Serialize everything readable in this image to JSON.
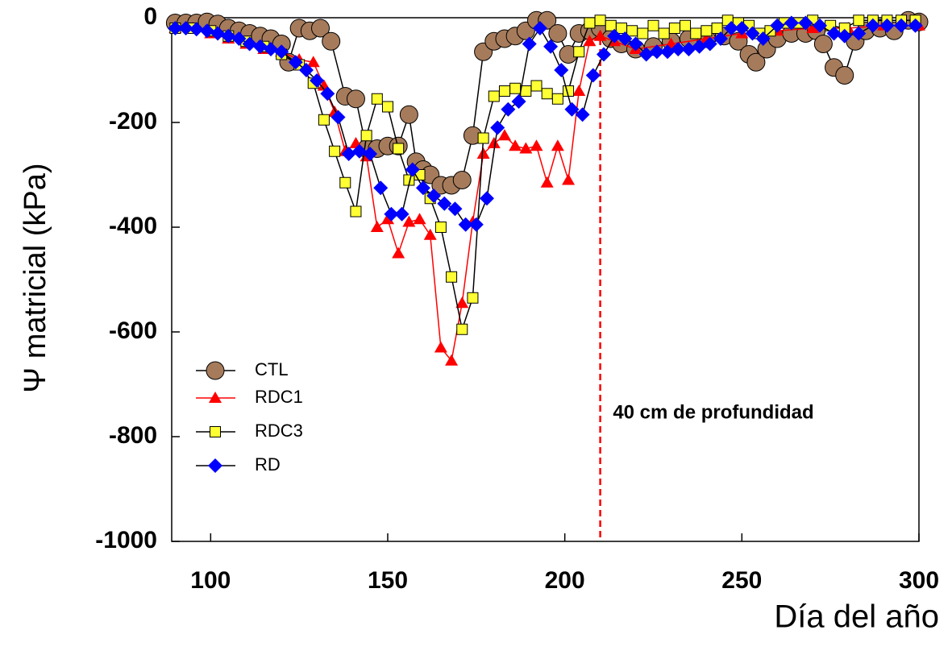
{
  "chart_data": {
    "type": "line",
    "xlabel": "Día del año",
    "ylabel": "Ψ matricial (kPa)",
    "annotation": "40 cm de profundidad",
    "vline": {
      "x": 210,
      "color": "#ff0000"
    },
    "xlim": [
      89,
      300
    ],
    "xticks": [
      100,
      150,
      200,
      250,
      300
    ],
    "ylim": [
      -1000,
      0
    ],
    "yticks": [
      -1000,
      -800,
      -600,
      -400,
      -200,
      0
    ],
    "legend": "lower left",
    "series": [
      {
        "name": "CTL",
        "marker": "circle",
        "color": "#a67b5b",
        "line_color": "#000000",
        "x": [
          90,
          93,
          96,
          99,
          102,
          105,
          108,
          111,
          114,
          117,
          120,
          122,
          125,
          128,
          131,
          134,
          138,
          141,
          144,
          147,
          150,
          153,
          156,
          158,
          160,
          162,
          165,
          168,
          171,
          174,
          177,
          180,
          183,
          186,
          189,
          192,
          195,
          198,
          201,
          204,
          207,
          210,
          213,
          216,
          220,
          225,
          230,
          235,
          240,
          245,
          249,
          252,
          254,
          257,
          260,
          264,
          268,
          271,
          273,
          276,
          279,
          282,
          285,
          289,
          293,
          297,
          300
        ],
        "values": [
          -10,
          -10,
          -10,
          -8,
          -12,
          -20,
          -25,
          -30,
          -35,
          -40,
          -50,
          -85,
          -20,
          -25,
          -20,
          -45,
          -150,
          -155,
          -250,
          -250,
          -245,
          -245,
          -185,
          -275,
          -290,
          -300,
          -320,
          -320,
          -310,
          -225,
          -65,
          -45,
          -40,
          -35,
          -25,
          -5,
          -5,
          -30,
          -70,
          -30,
          -25,
          -20,
          -40,
          -50,
          -60,
          -55,
          -45,
          -40,
          -40,
          -35,
          -45,
          -70,
          -85,
          -60,
          -40,
          -30,
          -30,
          -25,
          -50,
          -95,
          -110,
          -45,
          -25,
          -20,
          -25,
          -5,
          -8
        ]
      },
      {
        "name": "RDC1",
        "marker": "triangle",
        "color": "#ff0000",
        "line_color": "#ff0000",
        "x": [
          90,
          95,
          100,
          105,
          110,
          115,
          120,
          125,
          129,
          132,
          135,
          138,
          141,
          144,
          147,
          150,
          153,
          156,
          159,
          162,
          165,
          168,
          171,
          174,
          177,
          180,
          183,
          186,
          189,
          192,
          195,
          198,
          201,
          204,
          207,
          210,
          214,
          220,
          230,
          240,
          250,
          260,
          270,
          280,
          290,
          300
        ],
        "values": [
          -20,
          -20,
          -30,
          -40,
          -50,
          -60,
          -65,
          -80,
          -85,
          -130,
          -180,
          -255,
          -240,
          -265,
          -400,
          -385,
          -450,
          -390,
          -385,
          -415,
          -630,
          -655,
          -545,
          -390,
          -260,
          -240,
          -225,
          -245,
          -250,
          -245,
          -315,
          -245,
          -310,
          -140,
          -45,
          -35,
          -45,
          -60,
          -50,
          -40,
          -30,
          -25,
          -20,
          -20,
          -15,
          -15
        ]
      },
      {
        "name": "RDC3",
        "marker": "square",
        "color": "#ffff33",
        "line_color": "#000000",
        "x": [
          90,
          95,
          100,
          105,
          110,
          115,
          120,
          125,
          129,
          132,
          135,
          138,
          141,
          144,
          147,
          150,
          153,
          156,
          159,
          162,
          165,
          168,
          171,
          174,
          177,
          180,
          183,
          186,
          189,
          192,
          195,
          198,
          201,
          204,
          207,
          210,
          213,
          216,
          219,
          222,
          225,
          228,
          231,
          234,
          237,
          240,
          243,
          246,
          249,
          252,
          255,
          258,
          262,
          266,
          270,
          275,
          279,
          283,
          287,
          291,
          295,
          299
        ],
        "values": [
          -20,
          -20,
          -25,
          -35,
          -45,
          -55,
          -70,
          -90,
          -125,
          -195,
          -255,
          -315,
          -370,
          -225,
          -155,
          -170,
          -250,
          -310,
          -300,
          -345,
          -400,
          -495,
          -595,
          -535,
          -230,
          -150,
          -140,
          -135,
          -140,
          -130,
          -145,
          -155,
          -140,
          -65,
          -10,
          -5,
          -15,
          -20,
          -25,
          -30,
          -15,
          -30,
          -20,
          -15,
          -30,
          -25,
          -20,
          -5,
          -10,
          -15,
          -30,
          -25,
          -10,
          -10,
          -5,
          -15,
          -20,
          -5,
          -5,
          -5,
          -5,
          -5
        ]
      },
      {
        "name": "RD",
        "marker": "diamond",
        "color": "#0000ff",
        "line_color": "#000000",
        "x": [
          90,
          93,
          96,
          99,
          102,
          105,
          108,
          111,
          114,
          117,
          120,
          124,
          127,
          130,
          133,
          136,
          139,
          142,
          145,
          148,
          151,
          154,
          157,
          160,
          163,
          166,
          169,
          172,
          175,
          178,
          181,
          184,
          187,
          190,
          193,
          196,
          199,
          202,
          205,
          208,
          211,
          214,
          217,
          220,
          223,
          226,
          229,
          232,
          235,
          238,
          241,
          244,
          247,
          250,
          253,
          256,
          260,
          264,
          268,
          272,
          276,
          279,
          283,
          287,
          291,
          295,
          299
        ],
        "values": [
          -20,
          -20,
          -22,
          -25,
          -30,
          -35,
          -40,
          -50,
          -55,
          -60,
          -65,
          -85,
          -100,
          -120,
          -145,
          -190,
          -260,
          -255,
          -260,
          -325,
          -375,
          -375,
          -290,
          -325,
          -340,
          -355,
          -365,
          -395,
          -395,
          -345,
          -210,
          -175,
          -160,
          -50,
          -20,
          -55,
          -100,
          -175,
          -185,
          -110,
          -70,
          -35,
          -40,
          -50,
          -70,
          -65,
          -65,
          -60,
          -60,
          -55,
          -50,
          -40,
          -20,
          -20,
          -30,
          -40,
          -15,
          -10,
          -10,
          -15,
          -30,
          -35,
          -30,
          -15,
          -15,
          -15,
          -15
        ]
      }
    ]
  }
}
